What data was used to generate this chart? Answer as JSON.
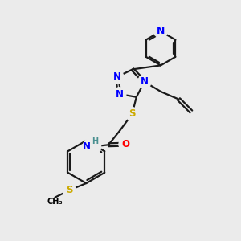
{
  "bg_color": "#ebebeb",
  "bond_color": "#1a1a1a",
  "bond_width": 1.6,
  "atom_colors": {
    "N": "#0000ff",
    "S": "#ccaa00",
    "O": "#ff0000",
    "H": "#4a9090"
  },
  "font_size": 8.5
}
